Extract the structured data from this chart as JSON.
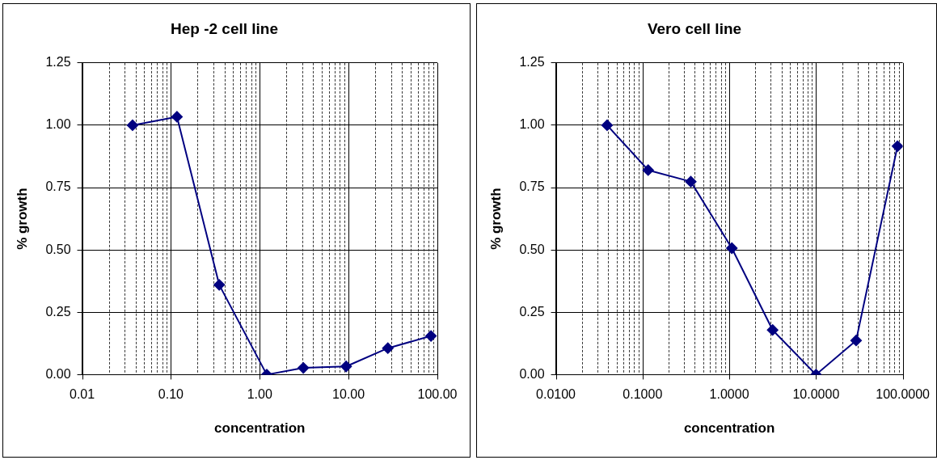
{
  "chart_data": [
    {
      "type": "line",
      "title": "Hep -2 cell line",
      "xlabel": "concentration",
      "ylabel": "% growth",
      "log": "x",
      "grid": true,
      "marker": "diamond",
      "line_style": "solid",
      "x": [
        0.037,
        0.117,
        0.35,
        1.2,
        3.1,
        9.4,
        27.7,
        84.7
      ],
      "series": [
        {
          "color": "#000080",
          "values": [
            1.0,
            1.034,
            0.36,
            0.0,
            0.027,
            0.033,
            0.106,
            0.155
          ]
        }
      ],
      "xlim": [
        0.01,
        100
      ],
      "ylim": [
        0,
        1.25
      ],
      "yticks": [
        {
          "value": 0,
          "label": "0.00"
        },
        {
          "value": 0.25,
          "label": "0.25"
        },
        {
          "value": 0.5,
          "label": "0.50"
        },
        {
          "value": 0.75,
          "label": "0.75"
        },
        {
          "value": 1,
          "label": "1.00"
        },
        {
          "value": 1.25,
          "label": "1.25"
        }
      ],
      "xticks": [
        {
          "value": 0.01,
          "label": "0.01"
        },
        {
          "value": 0.02,
          "label": null
        },
        {
          "value": 0.03,
          "label": null
        },
        {
          "value": 0.04,
          "label": null
        },
        {
          "value": 0.05,
          "label": null
        },
        {
          "value": 0.06,
          "label": null
        },
        {
          "value": 0.07,
          "label": null
        },
        {
          "value": 0.08,
          "label": null
        },
        {
          "value": 0.09,
          "label": null
        },
        {
          "value": 0.1,
          "label": "0.10"
        },
        {
          "value": 0.2,
          "label": null
        },
        {
          "value": 0.3,
          "label": null
        },
        {
          "value": 0.4,
          "label": null
        },
        {
          "value": 0.5,
          "label": null
        },
        {
          "value": 0.6,
          "label": null
        },
        {
          "value": 0.7,
          "label": null
        },
        {
          "value": 0.8,
          "label": null
        },
        {
          "value": 0.9,
          "label": null
        },
        {
          "value": 1,
          "label": "1.00"
        },
        {
          "value": 2,
          "label": null
        },
        {
          "value": 3,
          "label": null
        },
        {
          "value": 4,
          "label": null
        },
        {
          "value": 5,
          "label": null
        },
        {
          "value": 6,
          "label": null
        },
        {
          "value": 7,
          "label": null
        },
        {
          "value": 8,
          "label": null
        },
        {
          "value": 9,
          "label": null
        },
        {
          "value": 10,
          "label": "10.00"
        },
        {
          "value": 20,
          "label": null
        },
        {
          "value": 30,
          "label": null
        },
        {
          "value": 40,
          "label": null
        },
        {
          "value": 50,
          "label": null
        },
        {
          "value": 60,
          "label": null
        },
        {
          "value": 70,
          "label": null
        },
        {
          "value": 80,
          "label": null
        },
        {
          "value": 90,
          "label": null
        },
        {
          "value": 100,
          "label": "100.00"
        }
      ]
    },
    {
      "type": "line",
      "title": "Vero cell line",
      "xlabel": "concentration",
      "ylabel": "% growth",
      "log": "x",
      "grid": true,
      "marker": "diamond",
      "line_style": "solid",
      "x": [
        0.039,
        0.116,
        0.36,
        1.07,
        3.16,
        10,
        29,
        87
      ],
      "series": [
        {
          "color": "#000080",
          "values": [
            1.0,
            0.82,
            0.774,
            0.507,
            0.179,
            0.0,
            0.137,
            0.916
          ]
        }
      ],
      "xlim": [
        0.01,
        100
      ],
      "ylim": [
        0,
        1.25
      ],
      "yticks": [
        {
          "value": 0,
          "label": "0.00"
        },
        {
          "value": 0.25,
          "label": "0.25"
        },
        {
          "value": 0.5,
          "label": "0.50"
        },
        {
          "value": 0.75,
          "label": "0.75"
        },
        {
          "value": 1,
          "label": "1.00"
        },
        {
          "value": 1.25,
          "label": "1.25"
        }
      ],
      "xticks": [
        {
          "value": 0.01,
          "label": "0.0100"
        },
        {
          "value": 0.02,
          "label": null
        },
        {
          "value": 0.03,
          "label": null
        },
        {
          "value": 0.04,
          "label": null
        },
        {
          "value": 0.05,
          "label": null
        },
        {
          "value": 0.06,
          "label": null
        },
        {
          "value": 0.07,
          "label": null
        },
        {
          "value": 0.08,
          "label": null
        },
        {
          "value": 0.09,
          "label": null
        },
        {
          "value": 0.1,
          "label": "0.1000"
        },
        {
          "value": 0.2,
          "label": null
        },
        {
          "value": 0.3,
          "label": null
        },
        {
          "value": 0.4,
          "label": null
        },
        {
          "value": 0.5,
          "label": null
        },
        {
          "value": 0.6,
          "label": null
        },
        {
          "value": 0.7,
          "label": null
        },
        {
          "value": 0.8,
          "label": null
        },
        {
          "value": 0.9,
          "label": null
        },
        {
          "value": 1,
          "label": "1.0000"
        },
        {
          "value": 2,
          "label": null
        },
        {
          "value": 3,
          "label": null
        },
        {
          "value": 4,
          "label": null
        },
        {
          "value": 5,
          "label": null
        },
        {
          "value": 6,
          "label": null
        },
        {
          "value": 7,
          "label": null
        },
        {
          "value": 8,
          "label": null
        },
        {
          "value": 9,
          "label": null
        },
        {
          "value": 10,
          "label": "10.0000"
        },
        {
          "value": 20,
          "label": null
        },
        {
          "value": 30,
          "label": null
        },
        {
          "value": 40,
          "label": null
        },
        {
          "value": 50,
          "label": null
        },
        {
          "value": 60,
          "label": null
        },
        {
          "value": 70,
          "label": null
        },
        {
          "value": 80,
          "label": null
        },
        {
          "value": 90,
          "label": null
        },
        {
          "value": 100,
          "label": "100.0000"
        }
      ]
    }
  ]
}
